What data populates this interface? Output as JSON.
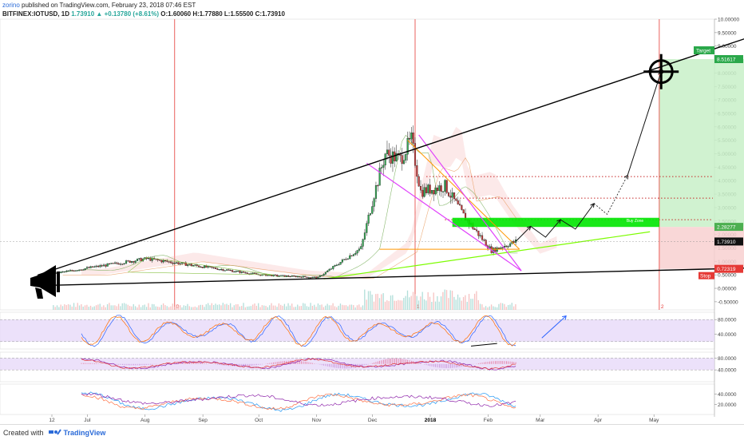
{
  "header": {
    "author": "zorino",
    "published_text": "published on TradingView.com, February 23, 2018 07:46 EST",
    "symbol": "BITFINEX:IOTUSD, 1D",
    "last": "1.73910",
    "change": "+0.13780 (+8.61%)",
    "ohlc": "O:1.60060 H:1.77880 L:1.55500 C:1.73910"
  },
  "footer": {
    "created_with": "Created with",
    "brand": "TradingView"
  },
  "colors": {
    "up": "#26a69a",
    "down": "#ef5350",
    "trend": "#000000",
    "wedge": "#e040fb",
    "triangle": "#ff9800",
    "support": "#7cfc00",
    "buy_zone": "#00e600",
    "target_zone": "#c8f0c8",
    "stop_zone": "#f8d0d0",
    "resistance": "#c62828",
    "stoch_k": "#2962ff",
    "stoch_d": "#ff6d00",
    "indicator_band": "#e4d4f8",
    "vline": "#e53935"
  },
  "chart_data": [
    {
      "type": "candlestick",
      "pane": "price",
      "ylim": [
        -0.8,
        10.0
      ],
      "y_ticks": [
        10.0,
        9.5,
        9.0,
        8.5,
        8.0,
        7.5,
        7.0,
        6.5,
        6.0,
        5.5,
        5.0,
        4.5,
        4.0,
        3.5,
        3.0,
        2.5,
        2.0,
        1.5,
        1.0,
        0.5,
        0.0,
        -0.5
      ],
      "y_tick_labels": [
        "10.00000",
        "9.50000",
        "9.00000",
        "8.50000",
        "8.00000",
        "7.50000",
        "7.00000",
        "6.50000",
        "6.00000",
        "5.50000",
        "5.00000",
        "4.50000",
        "4.00000",
        "3.50000",
        "3.00000",
        "2.50000",
        "2.00000",
        "1.50000",
        "1.00000",
        "0.50000",
        "0.00000",
        "-0.50000"
      ],
      "x_tick_labels": [
        "12",
        "Jul",
        "Aug",
        "Sep",
        "Oct",
        "Nov",
        "Dec",
        "2018",
        "Feb",
        "Mar",
        "Apr",
        "May"
      ],
      "x_tick_days": [
        0,
        19,
        50,
        81,
        111,
        142,
        172,
        203,
        234,
        262,
        293,
        323
      ],
      "vline_days": [
        65,
        194,
        325
      ],
      "vline_labels": [
        "0",
        "1",
        "2"
      ],
      "price_labels": {
        "target": {
          "value": 8.51617,
          "text": "8.51617",
          "tag": "Target"
        },
        "buy_zone": {
          "value": 2.28277,
          "text": "2.28277",
          "tag": "Buy Zone"
        },
        "last": {
          "value": 1.7391,
          "text": "1.73910"
        },
        "stop": {
          "value": 0.72319,
          "text": "0.72319",
          "tag": "Stop"
        }
      },
      "key_points": [
        {
          "day": 0,
          "price": 0.55
        },
        {
          "day": 50,
          "price": 1.1
        },
        {
          "day": 111,
          "price": 0.5
        },
        {
          "day": 142,
          "price": 0.4
        },
        {
          "day": 165,
          "price": 1.5
        },
        {
          "day": 172,
          "price": 3.5
        },
        {
          "day": 178,
          "price": 5.0
        },
        {
          "day": 186,
          "price": 4.8
        },
        {
          "day": 192,
          "price": 5.5
        },
        {
          "day": 197,
          "price": 3.6
        },
        {
          "day": 210,
          "price": 3.8
        },
        {
          "day": 220,
          "price": 2.7
        },
        {
          "day": 235,
          "price": 1.4
        },
        {
          "day": 248,
          "price": 1.74
        }
      ],
      "drawings": {
        "upper_trendline": [
          [
            0,
            0.55
          ],
          [
            372,
            9.3
          ]
        ],
        "lower_trendline": [
          [
            0,
            0.1
          ],
          [
            372,
            0.75
          ]
        ],
        "buy_zone": [
          2.28,
          2.62
        ],
        "resistance_levels": [
          2.55,
          3.35,
          4.15
        ],
        "projection_path": [
          [
            248,
            1.74
          ],
          [
            256,
            2.3
          ],
          [
            264,
            1.9
          ],
          [
            272,
            2.55
          ],
          [
            280,
            2.2
          ],
          [
            290,
            3.15
          ],
          [
            297,
            2.75
          ],
          [
            308,
            4.2
          ],
          [
            326,
            8.05
          ]
        ]
      }
    },
    {
      "type": "line",
      "pane": "stoch_rsi",
      "ylim": [
        0,
        100
      ],
      "y_tick_labels": [
        "80.0000",
        "40.0000"
      ],
      "series": [
        {
          "values_note_free": true
        }
      ]
    },
    {
      "type": "line",
      "pane": "macd",
      "ylim": [
        0,
        100
      ],
      "y_tick_labels": [
        "80.0000",
        "40.0000"
      ]
    },
    {
      "type": "line",
      "pane": "dmi",
      "ylim": [
        0,
        60
      ],
      "y_tick_labels": [
        "40.0000",
        "20.0000"
      ]
    }
  ]
}
